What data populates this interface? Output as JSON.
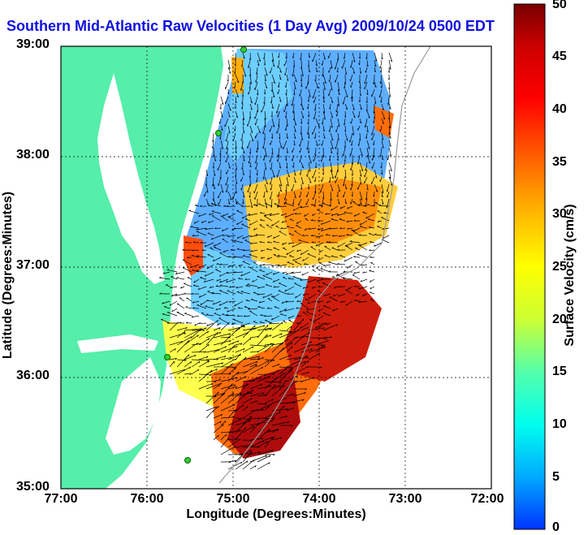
{
  "title": "Southern Mid-Atlantic Raw Velocities (1 Day Avg) 2009/10/24 0500 EDT",
  "axes": {
    "xlabel": "Longitude (Degrees:Minutes)",
    "ylabel": "Latitude (Degrees:Minutes)",
    "xticks": [
      "77:00",
      "76:00",
      "75:00",
      "74:00",
      "73:00",
      "72:00"
    ],
    "yticks": [
      "39:00",
      "38:00",
      "37:00",
      "36:00",
      "35:00"
    ],
    "grid": "dotted"
  },
  "colorbar": {
    "label": "Surface Velocity (cm/s)",
    "ticks": [
      "50",
      "45",
      "40",
      "35",
      "30",
      "25",
      "20",
      "15",
      "10",
      "5",
      "0"
    ],
    "min": 0,
    "max": 50,
    "colors": [
      "#0033ff",
      "#00aaff",
      "#00ffee",
      "#55ffaa",
      "#ccff33",
      "#ffff00",
      "#ffaa00",
      "#ff5500",
      "#ff0000",
      "#cc0000",
      "#770000"
    ]
  },
  "map": {
    "land_color": "#55eeaa",
    "water_color": "#ffffff",
    "site_color": "#33cc33"
  }
}
